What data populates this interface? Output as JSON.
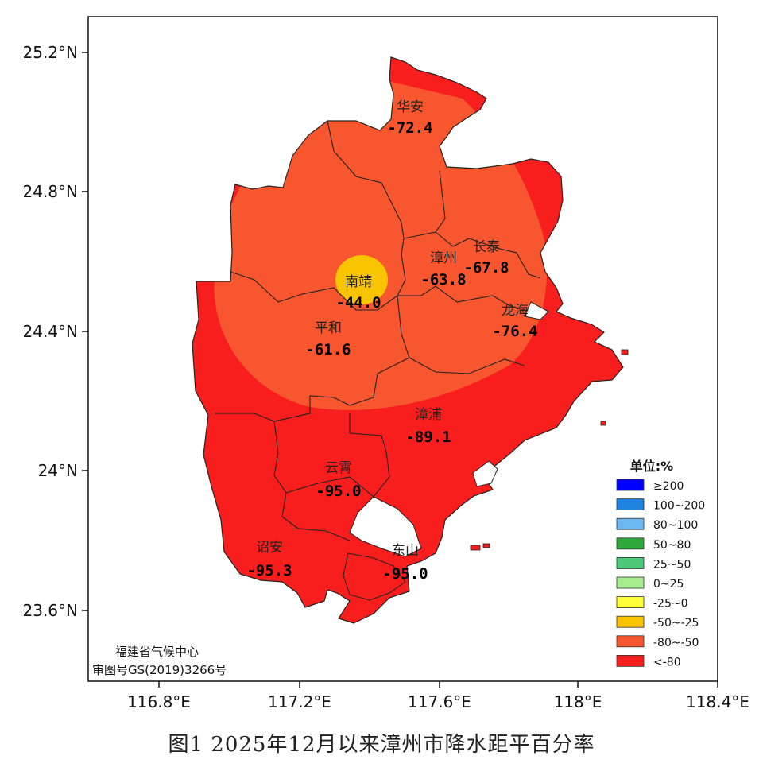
{
  "caption": "图1 2025年12月以来漳州市降水距平百分率",
  "axes": {
    "x_ticks": [
      "116.8°E",
      "117.2°E",
      "117.6°E",
      "118°E",
      "118.4°E"
    ],
    "y_ticks": [
      "25.2°N",
      "24.8°N",
      "24.4°N",
      "24°N",
      "23.6°N"
    ]
  },
  "counties": [
    {
      "name": "华安",
      "value": "-72.4"
    },
    {
      "name": "长泰",
      "value": "-67.8"
    },
    {
      "name": "漳州",
      "value": "-63.8"
    },
    {
      "name": "南靖",
      "value": "-44.0"
    },
    {
      "name": "龙海",
      "value": "-76.4"
    },
    {
      "name": "平和",
      "value": "-61.6"
    },
    {
      "name": "漳浦",
      "value": "-89.1"
    },
    {
      "name": "云霄",
      "value": "-95.0"
    },
    {
      "name": "诏安",
      "value": "-95.3"
    },
    {
      "name": "东山",
      "value": "-95.0"
    }
  ],
  "legend": {
    "title": "单位:%",
    "items": [
      {
        "label": "≥200",
        "color": "#0000ff"
      },
      {
        "label": "100~200",
        "color": "#1e82e0"
      },
      {
        "label": "80~100",
        "color": "#6cb8f0"
      },
      {
        "label": "50~80",
        "color": "#2ea83a"
      },
      {
        "label": "25~50",
        "color": "#4ec878"
      },
      {
        "label": "0~25",
        "color": "#a8ec90"
      },
      {
        "label": "-25~0",
        "color": "#ffff3a"
      },
      {
        "label": "-50~-25",
        "color": "#f8c400"
      },
      {
        "label": "-80~-50",
        "color": "#f8562e"
      },
      {
        "label": "<-80",
        "color": "#f81e1e"
      }
    ]
  },
  "credit": {
    "line1": "福建省气候中心",
    "line2": "审图号GS(2019)3266号"
  }
}
